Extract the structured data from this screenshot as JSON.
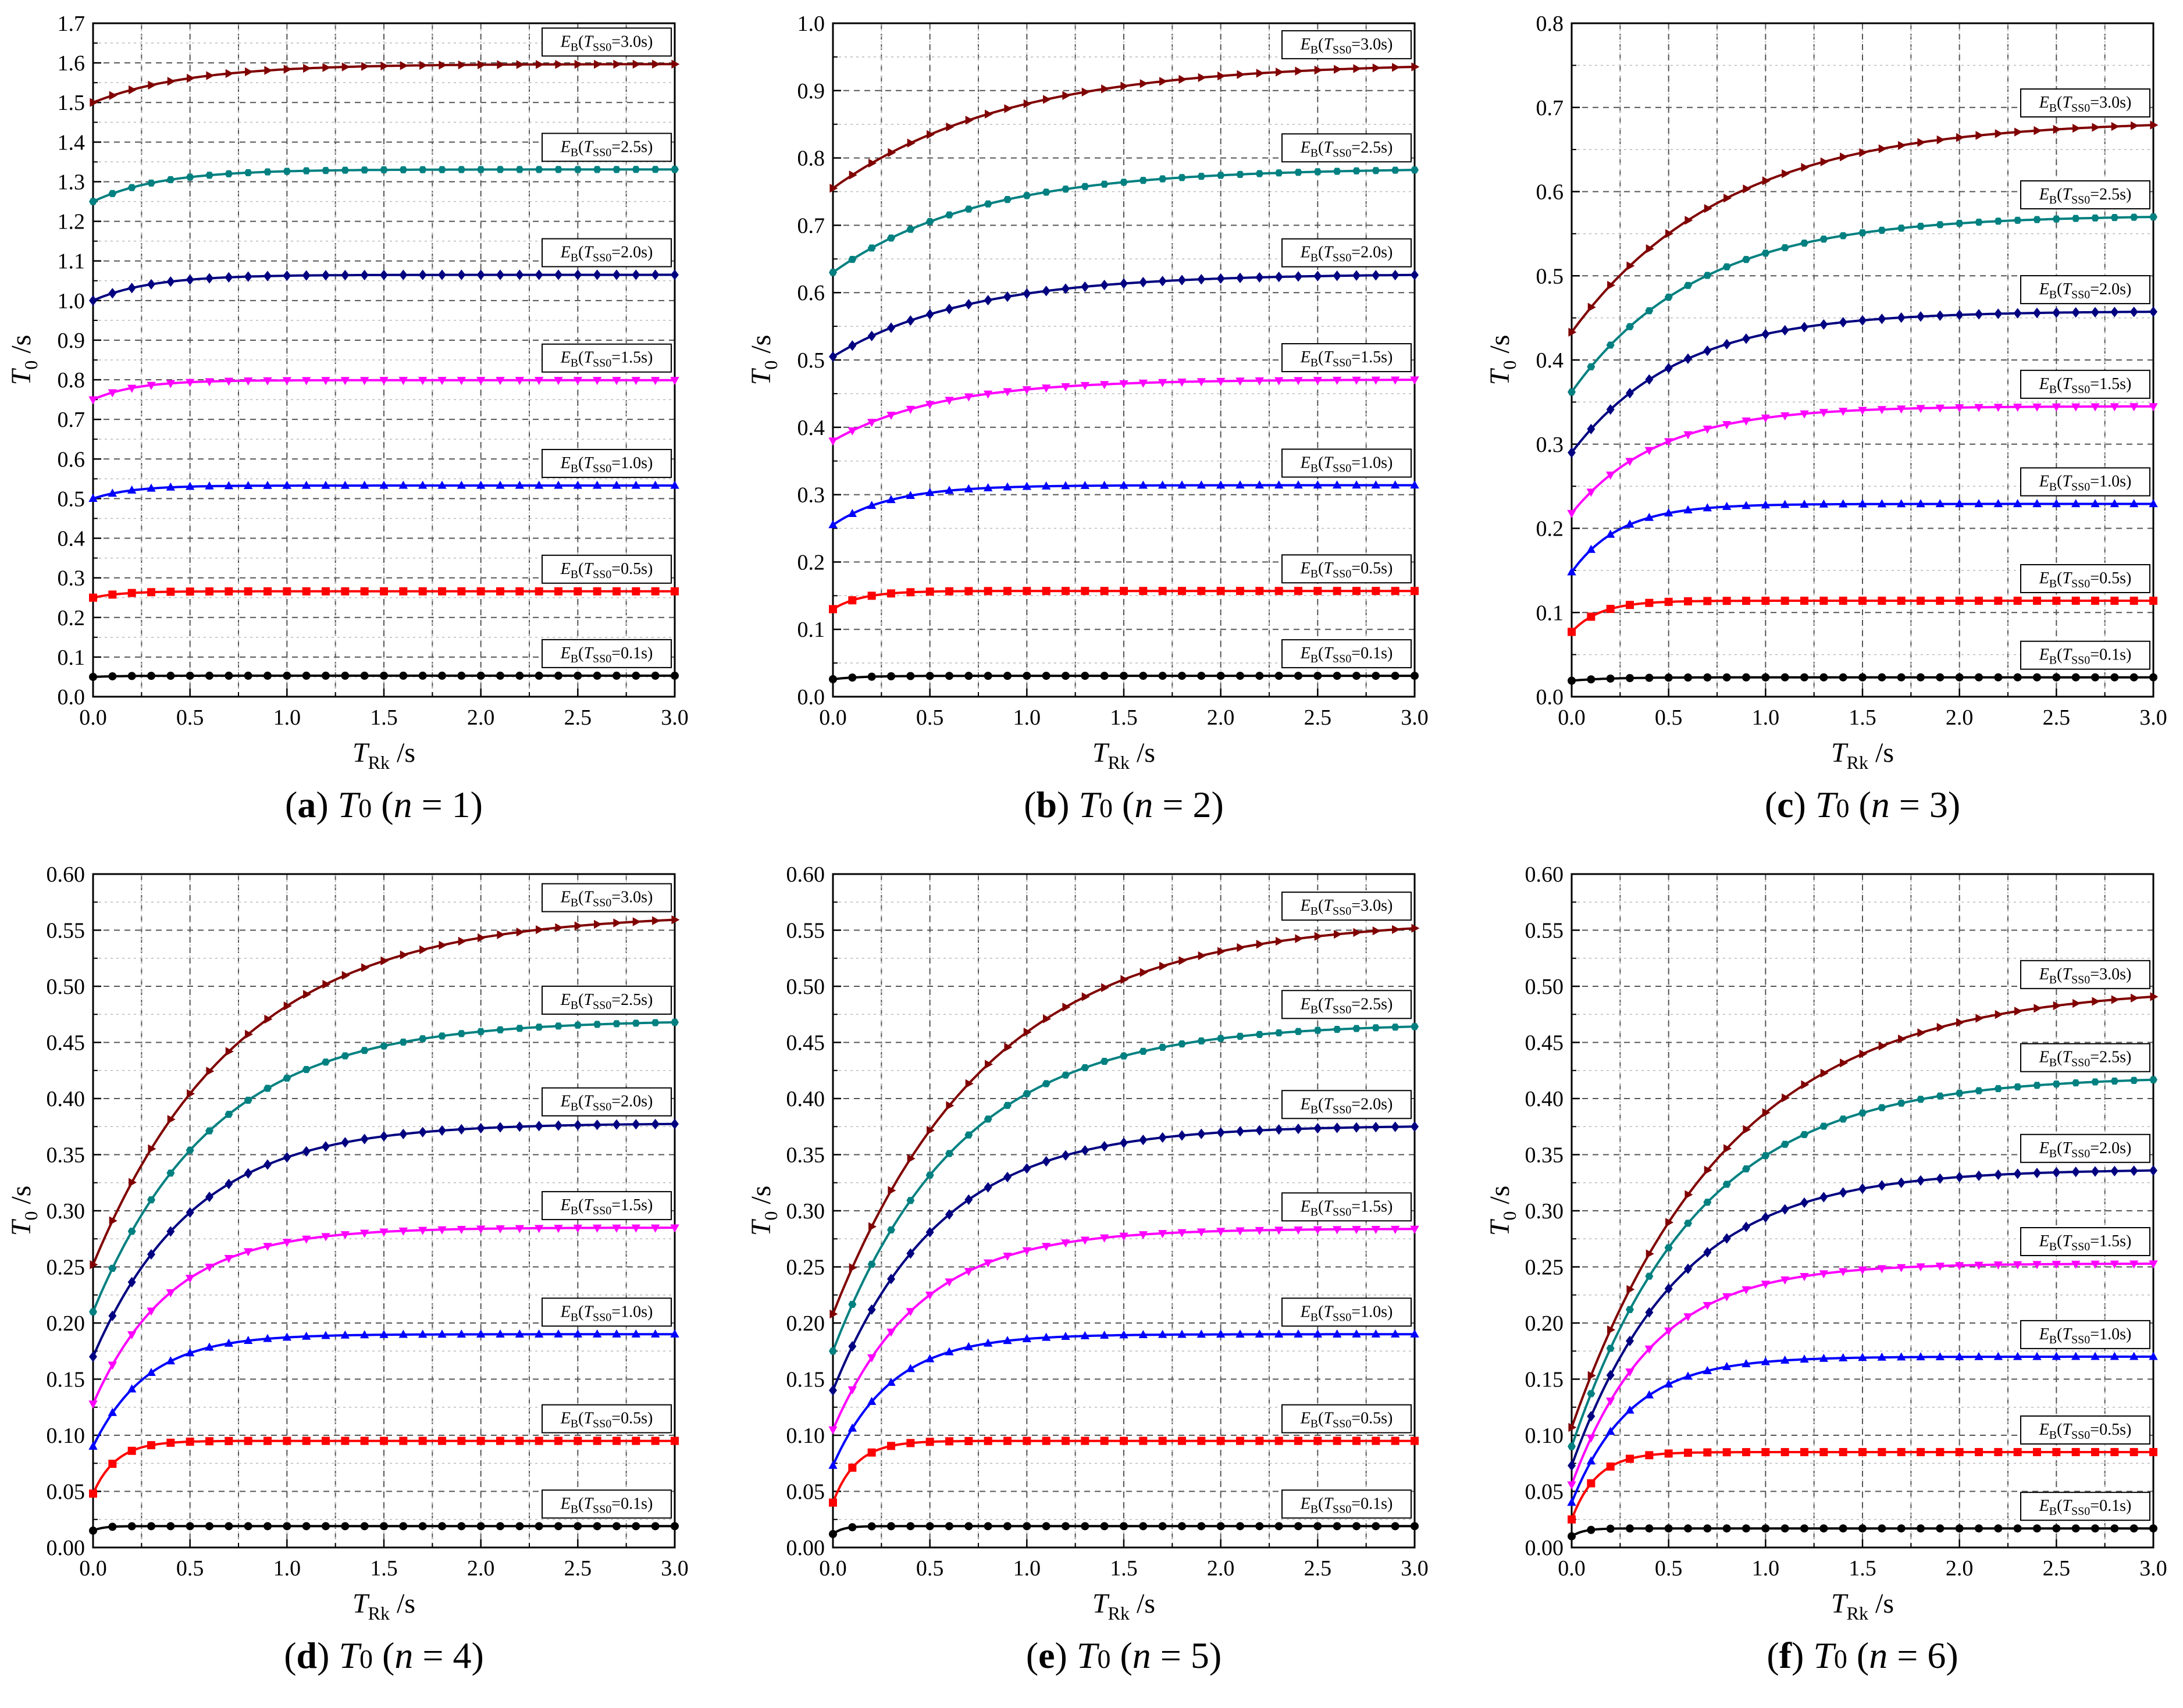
{
  "figure": {
    "series_colors": [
      "#000000",
      "#ff0000",
      "#0000ff",
      "#ff00ff",
      "#000080",
      "#008080",
      "#800000"
    ],
    "marker_shapes": [
      "circle",
      "square",
      "triangle-up",
      "triangle-down",
      "diamond",
      "hexagon",
      "triangle-right"
    ]
  },
  "chart_data": [
    {
      "type": "line",
      "caption": {
        "letter": "a",
        "symbol": "T",
        "sub": "0",
        "n_text": "n",
        "eq": " = 1"
      },
      "xlabel": {
        "sym": "T",
        "sub": "Rk",
        "unit": " /s"
      },
      "ylabel": {
        "sym": "T",
        "sub": "0",
        "unit": " /s"
      },
      "xlim": [
        0,
        3.0
      ],
      "ylim": [
        0,
        1.7
      ],
      "xticks": [
        "0.0",
        "0.5",
        "1.0",
        "1.5",
        "2.0",
        "2.5",
        "3.0"
      ],
      "yticks": [
        "0.0",
        "0.1",
        "0.2",
        "0.3",
        "0.4",
        "0.5",
        "0.6",
        "0.7",
        "0.8",
        "0.9",
        "1.0",
        "1.1",
        "1.2",
        "1.3",
        "1.4",
        "1.5",
        "1.6",
        "1.7"
      ],
      "series": [
        {
          "name": "EB(TSS0=0.1s)",
          "lab": {
            "e": "E",
            "b": "B",
            "t": "T",
            "ss": "SS0",
            "val": "=0.1s)"
          },
          "y0": 0.05,
          "yinf": 0.053,
          "tau": 0.15
        },
        {
          "name": "EB(TSS0=0.5s)",
          "lab": {
            "e": "E",
            "b": "B",
            "t": "T",
            "ss": "SS0",
            "val": "=0.5s)"
          },
          "y0": 0.25,
          "yinf": 0.266,
          "tau": 0.15
        },
        {
          "name": "EB(TSS0=1.0s)",
          "lab": {
            "e": "E",
            "b": "B",
            "t": "T",
            "ss": "SS0",
            "val": "=1.0s)"
          },
          "y0": 0.5,
          "yinf": 0.533,
          "tau": 0.2
        },
        {
          "name": "EB(TSS0=1.5s)",
          "lab": {
            "e": "E",
            "b": "B",
            "t": "T",
            "ss": "SS0",
            "val": "=1.5s)"
          },
          "y0": 0.75,
          "yinf": 0.799,
          "tau": 0.22
        },
        {
          "name": "EB(TSS0=2.0s)",
          "lab": {
            "e": "E",
            "b": "B",
            "t": "T",
            "ss": "SS0",
            "val": "=2.0s)"
          },
          "y0": 1.0,
          "yinf": 1.065,
          "tau": 0.3
        },
        {
          "name": "EB(TSS0=2.5s)",
          "lab": {
            "e": "E",
            "b": "B",
            "t": "T",
            "ss": "SS0",
            "val": "=2.5s)"
          },
          "y0": 1.25,
          "yinf": 1.331,
          "tau": 0.35
        },
        {
          "name": "EB(TSS0=3.0s)",
          "lab": {
            "e": "E",
            "b": "B",
            "t": "T",
            "ss": "SS0",
            "val": "=3.0s)"
          },
          "y0": 1.5,
          "yinf": 1.597,
          "tau": 0.5
        }
      ]
    },
    {
      "type": "line",
      "caption": {
        "letter": "b",
        "symbol": "T",
        "sub": "0",
        "n_text": "n",
        "eq": " = 2"
      },
      "xlabel": {
        "sym": "T",
        "sub": "Rk",
        "unit": " /s"
      },
      "ylabel": {
        "sym": "T",
        "sub": "0",
        "unit": " /s"
      },
      "xlim": [
        0,
        3.0
      ],
      "ylim": [
        0,
        1.0
      ],
      "xticks": [
        "0.0",
        "0.5",
        "1.0",
        "1.5",
        "2.0",
        "2.5",
        "3.0"
      ],
      "yticks": [
        "0.0",
        "0.1",
        "0.2",
        "0.3",
        "0.4",
        "0.5",
        "0.6",
        "0.7",
        "0.8",
        "0.9",
        "1.0"
      ],
      "series": [
        {
          "name": "EB(TSS0=0.1s)",
          "lab": {
            "e": "E",
            "b": "B",
            "t": "T",
            "ss": "SS0",
            "val": "=0.1s)"
          },
          "y0": 0.026,
          "yinf": 0.031,
          "tau": 0.15
        },
        {
          "name": "EB(TSS0=0.5s)",
          "lab": {
            "e": "E",
            "b": "B",
            "t": "T",
            "ss": "SS0",
            "val": "=0.5s)"
          },
          "y0": 0.13,
          "yinf": 0.157,
          "tau": 0.15
        },
        {
          "name": "EB(TSS0=1.0s)",
          "lab": {
            "e": "E",
            "b": "B",
            "t": "T",
            "ss": "SS0",
            "val": "=1.0s)"
          },
          "y0": 0.255,
          "yinf": 0.314,
          "tau": 0.3
        },
        {
          "name": "EB(TSS0=1.5s)",
          "lab": {
            "e": "E",
            "b": "B",
            "t": "T",
            "ss": "SS0",
            "val": "=1.5s)"
          },
          "y0": 0.38,
          "yinf": 0.471,
          "tau": 0.55
        },
        {
          "name": "EB(TSS0=2.0s)",
          "lab": {
            "e": "E",
            "b": "B",
            "t": "T",
            "ss": "SS0",
            "val": "=2.0s)"
          },
          "y0": 0.505,
          "yinf": 0.628,
          "tau": 0.7
        },
        {
          "name": "EB(TSS0=2.5s)",
          "lab": {
            "e": "E",
            "b": "B",
            "t": "T",
            "ss": "SS0",
            "val": "=2.5s)"
          },
          "y0": 0.63,
          "yinf": 0.785,
          "tau": 0.75
        },
        {
          "name": "EB(TSS0=3.0s)",
          "lab": {
            "e": "E",
            "b": "B",
            "t": "T",
            "ss": "SS0",
            "val": "=3.0s)"
          },
          "y0": 0.755,
          "yinf": 0.942,
          "tau": 0.9
        }
      ]
    },
    {
      "type": "line",
      "caption": {
        "letter": "c",
        "symbol": "T",
        "sub": "0",
        "n_text": "n",
        "eq": " = 3"
      },
      "xlabel": {
        "sym": "T",
        "sub": "Rk",
        "unit": " /s"
      },
      "ylabel": {
        "sym": "T",
        "sub": "0",
        "unit": " /s"
      },
      "xlim": [
        0,
        3.0
      ],
      "ylim": [
        0,
        0.8
      ],
      "xticks": [
        "0.0",
        "0.5",
        "1.0",
        "1.5",
        "2.0",
        "2.5",
        "3.0"
      ],
      "yticks": [
        "0.0",
        "0.1",
        "0.2",
        "0.3",
        "0.4",
        "0.5",
        "0.6",
        "0.7",
        "0.8"
      ],
      "series": [
        {
          "name": "EB(TSS0=0.1s)",
          "lab": {
            "e": "E",
            "b": "B",
            "t": "T",
            "ss": "SS0",
            "val": "=0.1s)"
          },
          "y0": 0.019,
          "yinf": 0.023,
          "tau": 0.2
        },
        {
          "name": "EB(TSS0=0.5s)",
          "lab": {
            "e": "E",
            "b": "B",
            "t": "T",
            "ss": "SS0",
            "val": "=0.5s)"
          },
          "y0": 0.077,
          "yinf": 0.114,
          "tau": 0.15
        },
        {
          "name": "EB(TSS0=1.0s)",
          "lab": {
            "e": "E",
            "b": "B",
            "t": "T",
            "ss": "SS0",
            "val": "=1.0s)"
          },
          "y0": 0.148,
          "yinf": 0.229,
          "tau": 0.25
        },
        {
          "name": "EB(TSS0=1.5s)",
          "lab": {
            "e": "E",
            "b": "B",
            "t": "T",
            "ss": "SS0",
            "val": "=1.5s)"
          },
          "y0": 0.218,
          "yinf": 0.345,
          "tau": 0.45
        },
        {
          "name": "EB(TSS0=2.0s)",
          "lab": {
            "e": "E",
            "b": "B",
            "t": "T",
            "ss": "SS0",
            "val": "=2.0s)"
          },
          "y0": 0.29,
          "yinf": 0.458,
          "tau": 0.55
        },
        {
          "name": "EB(TSS0=2.5s)",
          "lab": {
            "e": "E",
            "b": "B",
            "t": "T",
            "ss": "SS0",
            "val": "=2.5s)"
          },
          "y0": 0.362,
          "yinf": 0.572,
          "tau": 0.65
        },
        {
          "name": "EB(TSS0=3.0s)",
          "lab": {
            "e": "E",
            "b": "B",
            "t": "T",
            "ss": "SS0",
            "val": "=3.0s)"
          },
          "y0": 0.433,
          "yinf": 0.685,
          "tau": 0.8
        }
      ]
    },
    {
      "type": "line",
      "caption": {
        "letter": "d",
        "symbol": "T",
        "sub": "0",
        "n_text": "n",
        "eq": " = 4"
      },
      "xlabel": {
        "sym": "T",
        "sub": "Rk",
        "unit": " /s"
      },
      "ylabel": {
        "sym": "T",
        "sub": "0",
        "unit": " /s"
      },
      "xlim": [
        0,
        3.0
      ],
      "ylim": [
        0,
        0.6
      ],
      "xticks": [
        "0.0",
        "0.5",
        "1.0",
        "1.5",
        "2.0",
        "2.5",
        "3.0"
      ],
      "yticks": [
        "0.00",
        "0.05",
        "0.10",
        "0.15",
        "0.20",
        "0.25",
        "0.30",
        "0.35",
        "0.40",
        "0.45",
        "0.50",
        "0.55",
        "0.60"
      ],
      "series": [
        {
          "name": "EB(TSS0=0.1s)",
          "lab": {
            "e": "E",
            "b": "B",
            "t": "T",
            "ss": "SS0",
            "val": "=0.1s)"
          },
          "y0": 0.015,
          "yinf": 0.019,
          "tau": 0.05
        },
        {
          "name": "EB(TSS0=0.5s)",
          "lab": {
            "e": "E",
            "b": "B",
            "t": "T",
            "ss": "SS0",
            "val": "=0.5s)"
          },
          "y0": 0.048,
          "yinf": 0.095,
          "tau": 0.12
        },
        {
          "name": "EB(TSS0=1.0s)",
          "lab": {
            "e": "E",
            "b": "B",
            "t": "T",
            "ss": "SS0",
            "val": "=1.0s)"
          },
          "y0": 0.09,
          "yinf": 0.19,
          "tau": 0.28
        },
        {
          "name": "EB(TSS0=1.5s)",
          "lab": {
            "e": "E",
            "b": "B",
            "t": "T",
            "ss": "SS0",
            "val": "=1.5s)"
          },
          "y0": 0.128,
          "yinf": 0.285,
          "tau": 0.4
        },
        {
          "name": "EB(TSS0=2.0s)",
          "lab": {
            "e": "E",
            "b": "B",
            "t": "T",
            "ss": "SS0",
            "val": "=2.0s)"
          },
          "y0": 0.17,
          "yinf": 0.378,
          "tau": 0.52
        },
        {
          "name": "EB(TSS0=2.5s)",
          "lab": {
            "e": "E",
            "b": "B",
            "t": "T",
            "ss": "SS0",
            "val": "=2.5s)"
          },
          "y0": 0.21,
          "yinf": 0.47,
          "tau": 0.62
        },
        {
          "name": "EB(TSS0=3.0s)",
          "lab": {
            "e": "E",
            "b": "B",
            "t": "T",
            "ss": "SS0",
            "val": "=3.0s)"
          },
          "y0": 0.252,
          "yinf": 0.565,
          "tau": 0.75
        }
      ]
    },
    {
      "type": "line",
      "caption": {
        "letter": "e",
        "symbol": "T",
        "sub": "0",
        "n_text": "n",
        "eq": " = 5"
      },
      "xlabel": {
        "sym": "T",
        "sub": "Rk",
        "unit": " /s"
      },
      "ylabel": {
        "sym": "T",
        "sub": "0",
        "unit": " /s"
      },
      "xlim": [
        0,
        3.0
      ],
      "ylim": [
        0,
        0.6
      ],
      "xticks": [
        "0.0",
        "0.5",
        "1.0",
        "1.5",
        "2.0",
        "2.5",
        "3.0"
      ],
      "yticks": [
        "0.00",
        "0.05",
        "0.10",
        "0.15",
        "0.20",
        "0.25",
        "0.30",
        "0.35",
        "0.40",
        "0.45",
        "0.50",
        "0.55",
        "0.60"
      ],
      "series": [
        {
          "name": "EB(TSS0=0.1s)",
          "lab": {
            "e": "E",
            "b": "B",
            "t": "T",
            "ss": "SS0",
            "val": "=0.1s)"
          },
          "y0": 0.012,
          "yinf": 0.019,
          "tau": 0.05
        },
        {
          "name": "EB(TSS0=0.5s)",
          "lab": {
            "e": "E",
            "b": "B",
            "t": "T",
            "ss": "SS0",
            "val": "=0.5s)"
          },
          "y0": 0.04,
          "yinf": 0.095,
          "tau": 0.12
        },
        {
          "name": "EB(TSS0=1.0s)",
          "lab": {
            "e": "E",
            "b": "B",
            "t": "T",
            "ss": "SS0",
            "val": "=1.0s)"
          },
          "y0": 0.073,
          "yinf": 0.19,
          "tau": 0.3
        },
        {
          "name": "EB(TSS0=1.5s)",
          "lab": {
            "e": "E",
            "b": "B",
            "t": "T",
            "ss": "SS0",
            "val": "=1.5s)"
          },
          "y0": 0.105,
          "yinf": 0.284,
          "tau": 0.45
        },
        {
          "name": "EB(TSS0=2.0s)",
          "lab": {
            "e": "E",
            "b": "B",
            "t": "T",
            "ss": "SS0",
            "val": "=2.0s)"
          },
          "y0": 0.14,
          "yinf": 0.376,
          "tau": 0.55
        },
        {
          "name": "EB(TSS0=2.5s)",
          "lab": {
            "e": "E",
            "b": "B",
            "t": "T",
            "ss": "SS0",
            "val": "=2.5s)"
          },
          "y0": 0.175,
          "yinf": 0.467,
          "tau": 0.65
        },
        {
          "name": "EB(TSS0=3.0s)",
          "lab": {
            "e": "E",
            "b": "B",
            "t": "T",
            "ss": "SS0",
            "val": "=3.0s)"
          },
          "y0": 0.208,
          "yinf": 0.56,
          "tau": 0.8
        }
      ]
    },
    {
      "type": "line",
      "caption": {
        "letter": "f",
        "symbol": "T",
        "sub": "0",
        "n_text": "n",
        "eq": " = 6"
      },
      "xlabel": {
        "sym": "T",
        "sub": "Rk",
        "unit": " /s"
      },
      "ylabel": {
        "sym": "T",
        "sub": "0",
        "unit": " /s"
      },
      "xlim": [
        0,
        3.0
      ],
      "ylim": [
        0,
        0.6
      ],
      "xticks": [
        "0.0",
        "0.5",
        "1.0",
        "1.5",
        "2.0",
        "2.5",
        "3.0"
      ],
      "yticks": [
        "0.00",
        "0.05",
        "0.10",
        "0.15",
        "0.20",
        "0.25",
        "0.30",
        "0.35",
        "0.40",
        "0.45",
        "0.50",
        "0.55",
        "0.60"
      ],
      "series": [
        {
          "name": "EB(TSS0=0.1s)",
          "lab": {
            "e": "E",
            "b": "B",
            "t": "T",
            "ss": "SS0",
            "val": "=0.1s)"
          },
          "y0": 0.01,
          "yinf": 0.017,
          "tau": 0.06
        },
        {
          "name": "EB(TSS0=0.5s)",
          "lab": {
            "e": "E",
            "b": "B",
            "t": "T",
            "ss": "SS0",
            "val": "=0.5s)"
          },
          "y0": 0.025,
          "yinf": 0.085,
          "tau": 0.13
        },
        {
          "name": "EB(TSS0=1.0s)",
          "lab": {
            "e": "E",
            "b": "B",
            "t": "T",
            "ss": "SS0",
            "val": "=1.0s)"
          },
          "y0": 0.04,
          "yinf": 0.17,
          "tau": 0.3
        },
        {
          "name": "EB(TSS0=1.5s)",
          "lab": {
            "e": "E",
            "b": "B",
            "t": "T",
            "ss": "SS0",
            "val": "=1.5s)"
          },
          "y0": 0.056,
          "yinf": 0.253,
          "tau": 0.42
        },
        {
          "name": "EB(TSS0=2.0s)",
          "lab": {
            "e": "E",
            "b": "B",
            "t": "T",
            "ss": "SS0",
            "val": "=2.0s)"
          },
          "y0": 0.073,
          "yinf": 0.337,
          "tau": 0.55
        },
        {
          "name": "EB(TSS0=2.5s)",
          "lab": {
            "e": "E",
            "b": "B",
            "t": "T",
            "ss": "SS0",
            "val": "=2.5s)"
          },
          "y0": 0.09,
          "yinf": 0.42,
          "tau": 0.65
        },
        {
          "name": "EB(TSS0=3.0s)",
          "lab": {
            "e": "E",
            "b": "B",
            "t": "T",
            "ss": "SS0",
            "val": "=3.0s)"
          },
          "y0": 0.107,
          "yinf": 0.5,
          "tau": 0.8
        }
      ]
    }
  ]
}
